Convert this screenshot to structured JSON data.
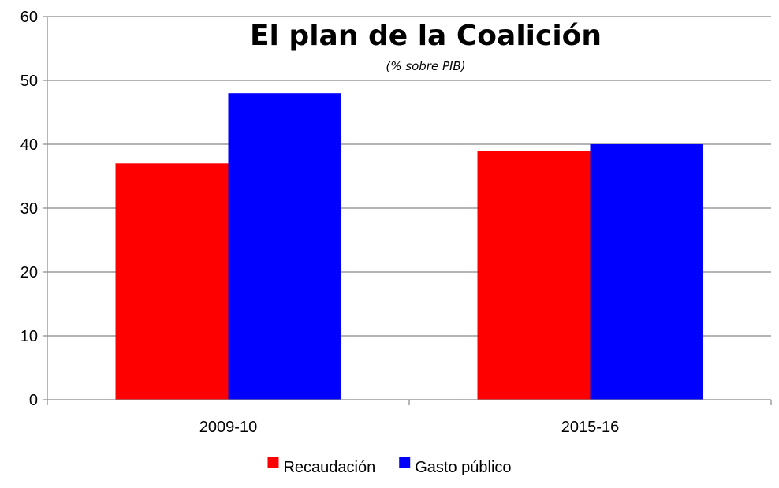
{
  "chart_data": {
    "type": "bar",
    "title": "El plan de la Coalición",
    "subtitle": "(% sobre PIB)",
    "categories": [
      "2009-10",
      "2015-16"
    ],
    "series": [
      {
        "name": "Recaudación",
        "values": [
          37,
          39
        ],
        "color": "#ff0000"
      },
      {
        "name": "Gasto público",
        "values": [
          48,
          40
        ],
        "color": "#0000ff"
      }
    ],
    "ylim": [
      0,
      60
    ],
    "yticks": [
      0,
      10,
      20,
      30,
      40,
      50,
      60
    ],
    "grid": true,
    "legend_position": "bottom"
  }
}
